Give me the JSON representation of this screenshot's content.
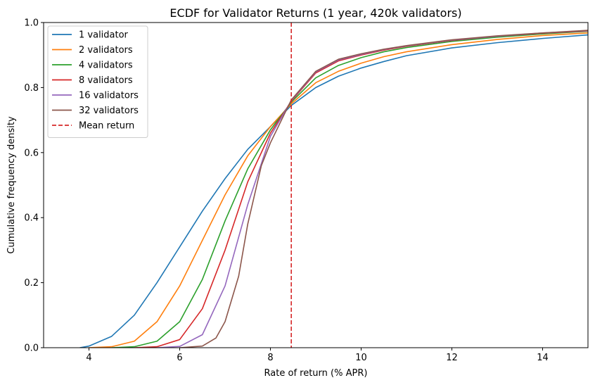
{
  "chart_data": {
    "type": "line",
    "title": "ECDF for Validator Returns (1 year, 420k validators)",
    "xlabel": "Rate of return (% APR)",
    "ylabel": "Cumulative frequency density",
    "xlim": [
      3,
      15
    ],
    "ylim": [
      0,
      1.0
    ],
    "xticks": [
      4,
      6,
      8,
      10,
      12,
      14
    ],
    "xtick_labels": [
      "4",
      "6",
      "8",
      "10",
      "12",
      "14"
    ],
    "yticks": [
      0,
      0.2,
      0.4,
      0.6,
      0.8,
      1.0
    ],
    "ytick_labels": [
      "0.0",
      "0.2",
      "0.4",
      "0.6",
      "0.8",
      "1.0"
    ],
    "grid": false,
    "legend_position": "top-left",
    "vline": {
      "name": "Mean return",
      "x": 8.46,
      "color": "#d62728",
      "style": "dashed"
    },
    "series": [
      {
        "name": "1 validator",
        "color": "#1f77b4",
        "x": [
          3.8,
          4.0,
          4.5,
          5.0,
          5.5,
          6.0,
          6.5,
          7.0,
          7.5,
          8.0,
          8.46,
          9.0,
          9.5,
          10.0,
          10.5,
          11.0,
          12.0,
          13.0,
          14.0,
          15.0
        ],
        "y": [
          0.0,
          0.005,
          0.035,
          0.1,
          0.2,
          0.31,
          0.42,
          0.52,
          0.61,
          0.68,
          0.745,
          0.8,
          0.835,
          0.86,
          0.88,
          0.898,
          0.922,
          0.938,
          0.951,
          0.962
        ]
      },
      {
        "name": "2 validators",
        "color": "#ff7f0e",
        "x": [
          4.0,
          4.5,
          5.0,
          5.5,
          6.0,
          6.5,
          7.0,
          7.5,
          8.0,
          8.46,
          9.0,
          9.5,
          10.0,
          10.5,
          11.0,
          12.0,
          13.0,
          14.0,
          15.0
        ],
        "y": [
          0.0,
          0.003,
          0.02,
          0.08,
          0.19,
          0.33,
          0.47,
          0.59,
          0.68,
          0.75,
          0.815,
          0.85,
          0.875,
          0.895,
          0.91,
          0.932,
          0.948,
          0.96,
          0.968
        ]
      },
      {
        "name": "4 validators",
        "color": "#2ca02c",
        "x": [
          4.5,
          5.0,
          5.5,
          6.0,
          6.5,
          7.0,
          7.5,
          8.0,
          8.46,
          9.0,
          9.5,
          10.0,
          10.5,
          11.0,
          12.0,
          13.0,
          14.0,
          15.0
        ],
        "y": [
          0.0,
          0.003,
          0.02,
          0.08,
          0.21,
          0.39,
          0.55,
          0.67,
          0.755,
          0.83,
          0.868,
          0.892,
          0.91,
          0.923,
          0.942,
          0.955,
          0.965,
          0.973
        ]
      },
      {
        "name": "8 validators",
        "color": "#d62728",
        "x": [
          5.0,
          5.5,
          6.0,
          6.5,
          7.0,
          7.5,
          8.0,
          8.46,
          9.0,
          9.5,
          10.0,
          10.5,
          11.0,
          12.0,
          13.0,
          14.0,
          15.0
        ],
        "y": [
          0.0,
          0.003,
          0.025,
          0.12,
          0.3,
          0.51,
          0.66,
          0.758,
          0.845,
          0.882,
          0.9,
          0.915,
          0.927,
          0.945,
          0.958,
          0.967,
          0.974
        ]
      },
      {
        "name": "16 validators",
        "color": "#9467bd",
        "x": [
          5.5,
          6.0,
          6.5,
          7.0,
          7.5,
          8.0,
          8.46,
          9.0,
          9.5,
          10.0,
          10.5,
          11.0,
          12.0,
          13.0,
          14.0,
          15.0
        ],
        "y": [
          0.0,
          0.004,
          0.04,
          0.19,
          0.44,
          0.65,
          0.76,
          0.848,
          0.885,
          0.902,
          0.917,
          0.928,
          0.946,
          0.958,
          0.968,
          0.975
        ]
      },
      {
        "name": "32 validators",
        "color": "#8c564b",
        "x": [
          6.0,
          6.5,
          6.8,
          7.0,
          7.3,
          7.5,
          7.8,
          8.0,
          8.46,
          9.0,
          9.5,
          10.0,
          10.5,
          11.0,
          12.0,
          13.0,
          14.0,
          15.0
        ],
        "y": [
          0.0,
          0.005,
          0.03,
          0.08,
          0.22,
          0.38,
          0.56,
          0.63,
          0.762,
          0.85,
          0.887,
          0.904,
          0.918,
          0.929,
          0.947,
          0.959,
          0.968,
          0.976
        ]
      }
    ]
  }
}
